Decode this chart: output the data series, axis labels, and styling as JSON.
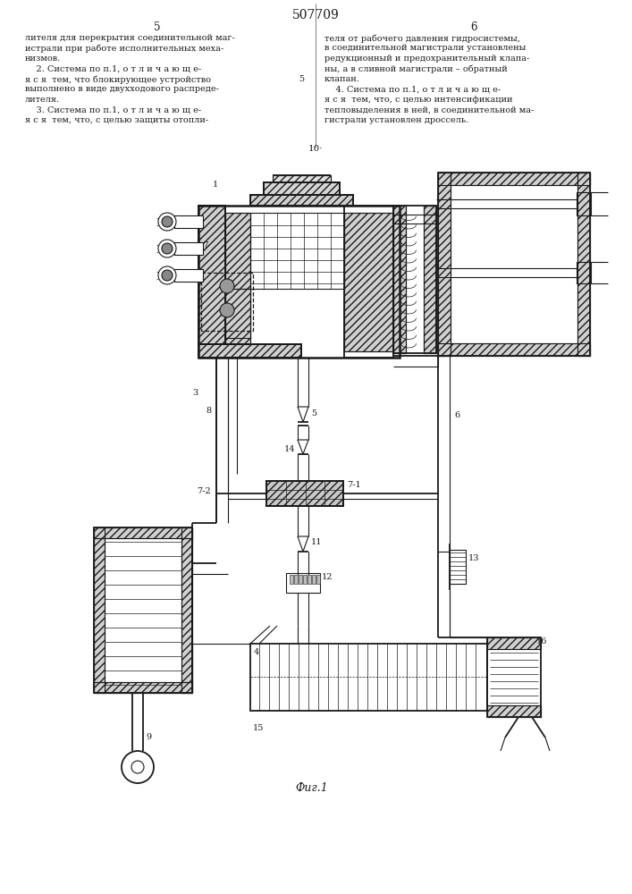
{
  "title": "507709",
  "page_left": "5",
  "page_right": "6",
  "fig_label": "Фиг.1",
  "bg_color": "#ffffff",
  "line_color": "#1a1a1a",
  "text_color": "#1a1a1a",
  "text_left_lines": [
    "лителя для перекрытия соединительной маг-",
    "истрали при работе исполнительных меха-",
    "низмов.",
    "    2. Система по п.1, о т л и ч а ю щ е-",
    "я с я  тем, что блокирующее устройство",
    "выполнено в виде двухходового распреде-",
    "лителя.",
    "    3. Система по п.1, о т л и ч а ю щ е-",
    "я с я  тем, что, с целью защиты отопли-"
  ],
  "text_right_lines": [
    "теля от рабочего давления гидросистемы,",
    "в соединительной магистрали установлены",
    "редукционный и предохранительный клапа-",
    "ны, а в сливной магистрали – обратный",
    "клапан.",
    "    4. Система по п.1, о т л и ч а ю щ е-",
    "я с я  тем, что, с целью интенсификации",
    "тепловыделения в ней, в соединительной ма-",
    "гистрали установлен дроссель."
  ]
}
